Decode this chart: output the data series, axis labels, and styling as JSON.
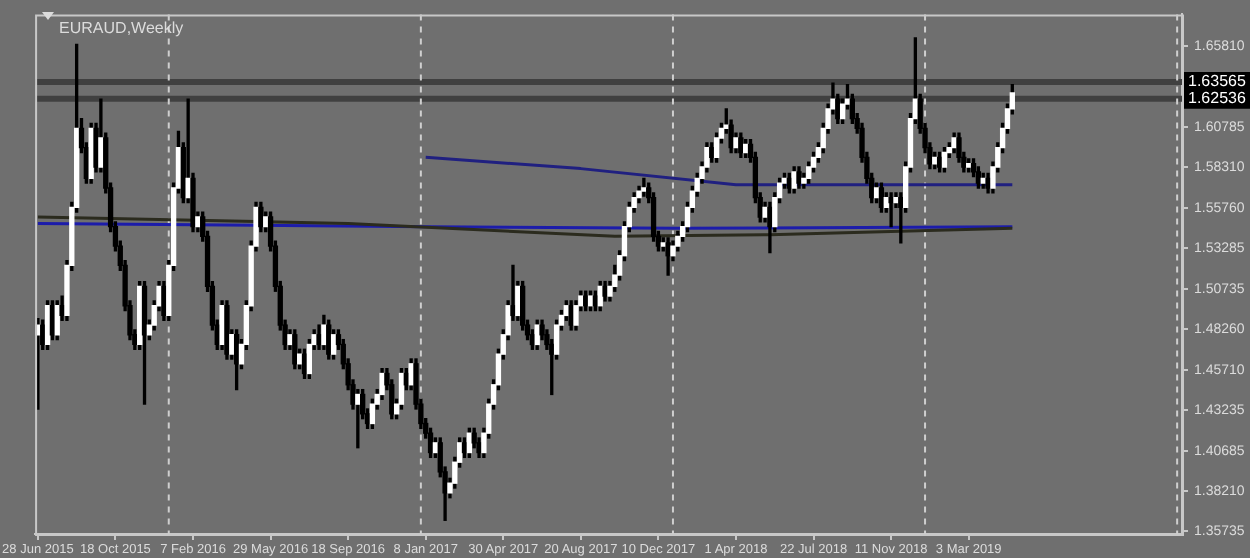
{
  "chart_data": {
    "type": "candlestick",
    "title": "EURAUD,Weekly",
    "x": [
      "2015-06-28",
      "2015-07-05",
      "2015-07-12",
      "2015-07-19",
      "2015-07-26",
      "2015-08-02",
      "2015-08-09",
      "2015-08-16",
      "2015-08-23",
      "2015-08-30",
      "2015-09-06",
      "2015-09-13",
      "2015-09-20",
      "2015-09-27",
      "2015-10-04",
      "2015-10-11",
      "2015-10-18",
      "2015-10-25",
      "2015-11-01",
      "2015-11-08",
      "2015-11-15",
      "2015-11-22",
      "2015-11-29",
      "2015-12-06",
      "2015-12-13",
      "2015-12-20",
      "2015-12-27",
      "2016-01-03",
      "2016-01-10",
      "2016-01-17",
      "2016-01-24",
      "2016-01-31",
      "2016-02-07",
      "2016-02-14",
      "2016-02-21",
      "2016-02-28",
      "2016-03-06",
      "2016-03-13",
      "2016-03-20",
      "2016-03-27",
      "2016-04-03",
      "2016-04-10",
      "2016-04-17",
      "2016-04-24",
      "2016-05-01",
      "2016-05-08",
      "2016-05-15",
      "2016-05-22",
      "2016-05-29",
      "2016-06-05",
      "2016-06-12",
      "2016-06-19",
      "2016-06-26",
      "2016-07-03",
      "2016-07-10",
      "2016-07-17",
      "2016-07-24",
      "2016-07-31",
      "2016-08-07",
      "2016-08-14",
      "2016-08-21",
      "2016-08-28",
      "2016-09-04",
      "2016-09-11",
      "2016-09-18",
      "2016-09-25",
      "2016-10-02",
      "2016-10-09",
      "2016-10-16",
      "2016-10-23",
      "2016-10-30",
      "2016-11-06",
      "2016-11-13",
      "2016-11-20",
      "2016-11-27",
      "2016-12-04",
      "2016-12-11",
      "2016-12-18",
      "2016-12-25",
      "2017-01-01",
      "2017-01-08",
      "2017-01-15",
      "2017-01-22",
      "2017-01-29",
      "2017-02-05",
      "2017-02-12",
      "2017-02-19",
      "2017-02-26",
      "2017-03-05",
      "2017-03-12",
      "2017-03-19",
      "2017-03-26",
      "2017-04-02",
      "2017-04-09",
      "2017-04-16",
      "2017-04-23",
      "2017-04-30",
      "2017-05-07",
      "2017-05-14",
      "2017-05-21",
      "2017-05-28",
      "2017-06-04",
      "2017-06-11",
      "2017-06-18",
      "2017-06-25",
      "2017-07-02",
      "2017-07-09",
      "2017-07-16",
      "2017-07-23",
      "2017-07-30",
      "2017-08-06",
      "2017-08-13",
      "2017-08-20",
      "2017-08-27",
      "2017-09-03",
      "2017-09-10",
      "2017-09-17",
      "2017-09-24",
      "2017-10-01",
      "2017-10-08",
      "2017-10-15",
      "2017-10-22",
      "2017-10-29",
      "2017-11-05",
      "2017-11-12",
      "2017-11-19",
      "2017-11-26",
      "2017-12-03",
      "2017-12-10",
      "2017-12-17",
      "2017-12-24",
      "2017-12-31",
      "2018-01-07",
      "2018-01-14",
      "2018-01-21",
      "2018-01-28",
      "2018-02-04",
      "2018-02-11",
      "2018-02-18",
      "2018-02-25",
      "2018-03-04",
      "2018-03-11",
      "2018-03-18",
      "2018-03-25",
      "2018-04-01",
      "2018-04-08",
      "2018-04-15",
      "2018-04-22",
      "2018-04-29",
      "2018-05-06",
      "2018-05-13",
      "2018-05-20",
      "2018-05-27",
      "2018-06-03",
      "2018-06-10",
      "2018-06-17",
      "2018-06-24",
      "2018-07-01",
      "2018-07-08",
      "2018-07-15",
      "2018-07-22",
      "2018-07-29",
      "2018-08-05",
      "2018-08-12",
      "2018-08-19",
      "2018-08-26",
      "2018-09-02",
      "2018-09-09",
      "2018-09-16",
      "2018-09-23",
      "2018-09-30",
      "2018-10-07",
      "2018-10-14",
      "2018-10-21",
      "2018-10-28",
      "2018-11-04",
      "2018-11-11",
      "2018-11-18",
      "2018-11-25",
      "2018-12-02",
      "2018-12-09",
      "2018-12-16",
      "2018-12-23",
      "2018-12-30",
      "2019-01-06",
      "2019-01-13",
      "2019-01-20",
      "2019-01-27",
      "2019-02-03",
      "2019-02-10",
      "2019-02-17",
      "2019-02-24",
      "2019-03-03",
      "2019-03-10",
      "2019-03-17",
      "2019-03-24",
      "2019-03-31",
      "2019-04-07",
      "2019-04-14",
      "2019-04-21",
      "2019-04-28",
      "2019-05-05"
    ],
    "ohlc": [
      [
        1.479,
        1.489,
        1.433,
        1.485
      ],
      [
        1.485,
        1.488,
        1.47,
        1.473
      ],
      [
        1.473,
        1.5,
        1.47,
        1.497
      ],
      [
        1.497,
        1.5,
        1.476,
        1.479
      ],
      [
        1.479,
        1.5,
        1.476,
        1.497
      ],
      [
        1.497,
        1.503,
        1.488,
        1.491
      ],
      [
        1.491,
        1.525,
        1.488,
        1.522
      ],
      [
        1.522,
        1.561,
        1.519,
        1.558
      ],
      [
        1.558,
        1.659,
        1.555,
        1.607
      ],
      [
        1.607,
        1.613,
        1.592,
        1.595
      ],
      [
        1.595,
        1.598,
        1.573,
        1.576
      ],
      [
        1.576,
        1.61,
        1.573,
        1.607
      ],
      [
        1.607,
        1.61,
        1.58,
        1.583
      ],
      [
        1.583,
        1.625,
        1.58,
        1.601
      ],
      [
        1.601,
        1.604,
        1.567,
        1.57
      ],
      [
        1.57,
        1.573,
        1.543,
        1.546
      ],
      [
        1.546,
        1.549,
        1.531,
        1.534
      ],
      [
        1.534,
        1.537,
        1.519,
        1.522
      ],
      [
        1.522,
        1.525,
        1.494,
        1.497
      ],
      [
        1.497,
        1.5,
        1.476,
        1.479
      ],
      [
        1.479,
        1.482,
        1.47,
        1.473
      ],
      [
        1.473,
        1.512,
        1.47,
        1.509
      ],
      [
        1.509,
        1.512,
        1.436,
        1.479
      ],
      [
        1.479,
        1.488,
        1.476,
        1.485
      ],
      [
        1.485,
        1.5,
        1.482,
        1.497
      ],
      [
        1.497,
        1.512,
        1.494,
        1.509
      ],
      [
        1.509,
        1.512,
        1.488,
        1.491
      ],
      [
        1.491,
        1.525,
        1.488,
        1.522
      ],
      [
        1.522,
        1.573,
        1.519,
        1.57
      ],
      [
        1.57,
        1.605,
        1.567,
        1.595
      ],
      [
        1.595,
        1.598,
        1.561,
        1.564
      ],
      [
        1.564,
        1.625,
        1.561,
        1.576
      ],
      [
        1.576,
        1.579,
        1.543,
        1.546
      ],
      [
        1.546,
        1.555,
        1.543,
        1.552
      ],
      [
        1.552,
        1.555,
        1.537,
        1.54
      ],
      [
        1.54,
        1.543,
        1.506,
        1.509
      ],
      [
        1.509,
        1.512,
        1.482,
        1.485
      ],
      [
        1.485,
        1.488,
        1.47,
        1.473
      ],
      [
        1.473,
        1.5,
        1.47,
        1.497
      ],
      [
        1.497,
        1.5,
        1.464,
        1.467
      ],
      [
        1.467,
        1.482,
        1.464,
        1.479
      ],
      [
        1.479,
        1.482,
        1.445,
        1.461
      ],
      [
        1.461,
        1.476,
        1.458,
        1.473
      ],
      [
        1.473,
        1.5,
        1.47,
        1.497
      ],
      [
        1.497,
        1.537,
        1.494,
        1.534
      ],
      [
        1.534,
        1.561,
        1.531,
        1.558
      ],
      [
        1.558,
        1.561,
        1.543,
        1.546
      ],
      [
        1.546,
        1.555,
        1.543,
        1.552
      ],
      [
        1.552,
        1.555,
        1.531,
        1.534
      ],
      [
        1.534,
        1.537,
        1.506,
        1.509
      ],
      [
        1.509,
        1.512,
        1.482,
        1.485
      ],
      [
        1.485,
        1.488,
        1.47,
        1.473
      ],
      [
        1.473,
        1.482,
        1.47,
        1.479
      ],
      [
        1.479,
        1.482,
        1.458,
        1.461
      ],
      [
        1.461,
        1.47,
        1.458,
        1.467
      ],
      [
        1.467,
        1.47,
        1.452,
        1.455
      ],
      [
        1.455,
        1.476,
        1.452,
        1.473
      ],
      [
        1.473,
        1.482,
        1.47,
        1.479
      ],
      [
        1.479,
        1.485,
        1.47,
        1.473
      ],
      [
        1.473,
        1.491,
        1.47,
        1.485
      ],
      [
        1.485,
        1.488,
        1.464,
        1.467
      ],
      [
        1.467,
        1.482,
        1.464,
        1.479
      ],
      [
        1.479,
        1.482,
        1.47,
        1.473
      ],
      [
        1.473,
        1.476,
        1.458,
        1.461
      ],
      [
        1.461,
        1.464,
        1.445,
        1.448
      ],
      [
        1.448,
        1.451,
        1.433,
        1.436
      ],
      [
        1.436,
        1.445,
        1.409,
        1.442
      ],
      [
        1.442,
        1.445,
        1.427,
        1.43
      ],
      [
        1.43,
        1.433,
        1.421,
        1.424
      ],
      [
        1.424,
        1.439,
        1.421,
        1.436
      ],
      [
        1.436,
        1.445,
        1.433,
        1.442
      ],
      [
        1.442,
        1.458,
        1.439,
        1.455
      ],
      [
        1.455,
        1.458,
        1.445,
        1.448
      ],
      [
        1.448,
        1.451,
        1.427,
        1.43
      ],
      [
        1.43,
        1.439,
        1.427,
        1.436
      ],
      [
        1.436,
        1.458,
        1.433,
        1.455
      ],
      [
        1.455,
        1.458,
        1.445,
        1.448
      ],
      [
        1.448,
        1.464,
        1.445,
        1.461
      ],
      [
        1.461,
        1.464,
        1.433,
        1.436
      ],
      [
        1.436,
        1.439,
        1.421,
        1.424
      ],
      [
        1.424,
        1.427,
        1.415,
        1.418
      ],
      [
        1.418,
        1.421,
        1.403,
        1.406
      ],
      [
        1.406,
        1.415,
        1.403,
        1.412
      ],
      [
        1.412,
        1.415,
        1.391,
        1.394
      ],
      [
        1.394,
        1.397,
        1.364,
        1.381
      ],
      [
        1.381,
        1.39,
        1.378,
        1.387
      ],
      [
        1.387,
        1.403,
        1.384,
        1.4
      ],
      [
        1.4,
        1.415,
        1.397,
        1.412
      ],
      [
        1.412,
        1.415,
        1.403,
        1.406
      ],
      [
        1.406,
        1.421,
        1.403,
        1.418
      ],
      [
        1.418,
        1.421,
        1.409,
        1.412
      ],
      [
        1.412,
        1.415,
        1.403,
        1.406
      ],
      [
        1.406,
        1.421,
        1.403,
        1.418
      ],
      [
        1.418,
        1.439,
        1.415,
        1.436
      ],
      [
        1.436,
        1.451,
        1.433,
        1.448
      ],
      [
        1.448,
        1.47,
        1.445,
        1.467
      ],
      [
        1.467,
        1.482,
        1.464,
        1.479
      ],
      [
        1.479,
        1.5,
        1.476,
        1.497
      ],
      [
        1.497,
        1.522,
        1.488,
        1.491
      ],
      [
        1.491,
        1.512,
        1.488,
        1.509
      ],
      [
        1.509,
        1.512,
        1.482,
        1.485
      ],
      [
        1.485,
        1.488,
        1.476,
        1.479
      ],
      [
        1.479,
        1.482,
        1.47,
        1.473
      ],
      [
        1.473,
        1.488,
        1.47,
        1.485
      ],
      [
        1.485,
        1.488,
        1.476,
        1.479
      ],
      [
        1.479,
        1.482,
        1.47,
        1.473
      ],
      [
        1.473,
        1.476,
        1.442,
        1.467
      ],
      [
        1.467,
        1.488,
        1.464,
        1.485
      ],
      [
        1.485,
        1.494,
        1.482,
        1.491
      ],
      [
        1.491,
        1.5,
        1.488,
        1.497
      ],
      [
        1.497,
        1.5,
        1.482,
        1.485
      ],
      [
        1.485,
        1.5,
        1.482,
        1.497
      ],
      [
        1.497,
        1.506,
        1.494,
        1.503
      ],
      [
        1.503,
        1.506,
        1.494,
        1.497
      ],
      [
        1.497,
        1.506,
        1.494,
        1.503
      ],
      [
        1.503,
        1.506,
        1.494,
        1.497
      ],
      [
        1.497,
        1.512,
        1.494,
        1.509
      ],
      [
        1.509,
        1.512,
        1.5,
        1.503
      ],
      [
        1.503,
        1.512,
        1.5,
        1.509
      ],
      [
        1.509,
        1.522,
        1.506,
        1.516
      ],
      [
        1.516,
        1.531,
        1.513,
        1.528
      ],
      [
        1.528,
        1.549,
        1.525,
        1.546
      ],
      [
        1.546,
        1.561,
        1.543,
        1.558
      ],
      [
        1.558,
        1.567,
        1.555,
        1.564
      ],
      [
        1.564,
        1.571,
        1.561,
        1.568
      ],
      [
        1.568,
        1.576,
        1.565,
        1.57
      ],
      [
        1.57,
        1.573,
        1.561,
        1.564
      ],
      [
        1.564,
        1.567,
        1.537,
        1.54
      ],
      [
        1.54,
        1.543,
        1.531,
        1.534
      ],
      [
        1.534,
        1.539,
        1.531,
        1.536
      ],
      [
        1.536,
        1.539,
        1.516,
        1.528
      ],
      [
        1.528,
        1.537,
        1.525,
        1.534
      ],
      [
        1.534,
        1.543,
        1.531,
        1.54
      ],
      [
        1.54,
        1.549,
        1.537,
        1.546
      ],
      [
        1.546,
        1.561,
        1.543,
        1.558
      ],
      [
        1.558,
        1.571,
        1.555,
        1.568
      ],
      [
        1.568,
        1.579,
        1.565,
        1.576
      ],
      [
        1.576,
        1.586,
        1.573,
        1.583
      ],
      [
        1.583,
        1.598,
        1.58,
        1.595
      ],
      [
        1.595,
        1.598,
        1.586,
        1.589
      ],
      [
        1.589,
        1.604,
        1.586,
        1.601
      ],
      [
        1.601,
        1.61,
        1.598,
        1.607
      ],
      [
        1.607,
        1.619,
        1.604,
        1.609
      ],
      [
        1.609,
        1.612,
        1.592,
        1.595
      ],
      [
        1.595,
        1.604,
        1.592,
        1.601
      ],
      [
        1.601,
        1.604,
        1.589,
        1.592
      ],
      [
        1.592,
        1.6,
        1.589,
        1.597
      ],
      [
        1.597,
        1.6,
        1.586,
        1.589
      ],
      [
        1.589,
        1.592,
        1.561,
        1.564
      ],
      [
        1.564,
        1.567,
        1.549,
        1.552
      ],
      [
        1.552,
        1.561,
        1.549,
        1.558
      ],
      [
        1.558,
        1.561,
        1.53,
        1.546
      ],
      [
        1.546,
        1.567,
        1.543,
        1.564
      ],
      [
        1.564,
        1.576,
        1.561,
        1.573
      ],
      [
        1.573,
        1.579,
        1.57,
        1.576
      ],
      [
        1.576,
        1.579,
        1.567,
        1.57
      ],
      [
        1.57,
        1.583,
        1.567,
        1.58
      ],
      [
        1.58,
        1.583,
        1.57,
        1.573
      ],
      [
        1.573,
        1.579,
        1.57,
        1.576
      ],
      [
        1.576,
        1.586,
        1.573,
        1.583
      ],
      [
        1.583,
        1.592,
        1.58,
        1.589
      ],
      [
        1.589,
        1.598,
        1.586,
        1.595
      ],
      [
        1.595,
        1.61,
        1.592,
        1.607
      ],
      [
        1.607,
        1.622,
        1.604,
        1.619
      ],
      [
        1.619,
        1.635,
        1.616,
        1.625
      ],
      [
        1.625,
        1.628,
        1.61,
        1.613
      ],
      [
        1.613,
        1.625,
        1.61,
        1.622
      ],
      [
        1.622,
        1.634,
        1.619,
        1.625
      ],
      [
        1.625,
        1.628,
        1.61,
        1.613
      ],
      [
        1.613,
        1.616,
        1.604,
        1.607
      ],
      [
        1.607,
        1.61,
        1.586,
        1.589
      ],
      [
        1.589,
        1.592,
        1.573,
        1.576
      ],
      [
        1.576,
        1.579,
        1.561,
        1.564
      ],
      [
        1.564,
        1.573,
        1.561,
        1.57
      ],
      [
        1.57,
        1.573,
        1.555,
        1.558
      ],
      [
        1.558,
        1.567,
        1.555,
        1.564
      ],
      [
        1.564,
        1.567,
        1.546,
        1.561
      ],
      [
        1.561,
        1.567,
        1.558,
        1.564
      ],
      [
        1.564,
        1.567,
        1.536,
        1.558
      ],
      [
        1.558,
        1.586,
        1.555,
        1.583
      ],
      [
        1.583,
        1.616,
        1.58,
        1.613
      ],
      [
        1.613,
        1.663,
        1.61,
        1.625
      ],
      [
        1.625,
        1.628,
        1.604,
        1.607
      ],
      [
        1.607,
        1.61,
        1.592,
        1.595
      ],
      [
        1.595,
        1.598,
        1.582,
        1.585
      ],
      [
        1.585,
        1.592,
        1.582,
        1.589
      ],
      [
        1.589,
        1.592,
        1.58,
        1.583
      ],
      [
        1.583,
        1.595,
        1.58,
        1.592
      ],
      [
        1.592,
        1.598,
        1.589,
        1.595
      ],
      [
        1.595,
        1.604,
        1.592,
        1.601
      ],
      [
        1.601,
        1.604,
        1.586,
        1.589
      ],
      [
        1.589,
        1.592,
        1.58,
        1.583
      ],
      [
        1.583,
        1.588,
        1.58,
        1.585
      ],
      [
        1.585,
        1.588,
        1.577,
        1.58
      ],
      [
        1.58,
        1.583,
        1.57,
        1.573
      ],
      [
        1.573,
        1.579,
        1.57,
        1.576
      ],
      [
        1.576,
        1.579,
        1.567,
        1.57
      ],
      [
        1.57,
        1.586,
        1.567,
        1.583
      ],
      [
        1.583,
        1.598,
        1.58,
        1.595
      ],
      [
        1.595,
        1.61,
        1.592,
        1.607
      ],
      [
        1.607,
        1.622,
        1.604,
        1.619
      ],
      [
        1.619,
        1.634,
        1.616,
        1.629
      ]
    ],
    "series": [
      {
        "type": "line",
        "color": "#2b2b1e",
        "x": [
          "2015-06-28",
          "2016-09-18",
          "2017-10-08",
          "2018-05-20",
          "2019-05-05"
        ],
        "values": [
          1.552,
          1.548,
          1.54,
          1.541,
          1.545
        ]
      },
      {
        "type": "line",
        "color": "#1c1caa",
        "x": [
          "2015-06-28",
          "2017-01-08",
          "2018-01-07",
          "2019-05-05"
        ],
        "values": [
          1.548,
          1.546,
          1.545,
          1.546
        ]
      },
      {
        "type": "line",
        "color": "#202080",
        "x": [
          "2017-01-08",
          "2017-08-20",
          "2018-04-01",
          "2018-04-29",
          "2019-05-05"
        ],
        "values": [
          1.589,
          1.582,
          1.572,
          1.572,
          1.572
        ]
      }
    ],
    "xlim": [
      "2015-06-24",
      "2020-01-05"
    ],
    "ylim": [
      1.3555,
      1.6776
    ],
    "xticks": [
      {
        "value": "2015-06-28",
        "label": "28 Jun 2015"
      },
      {
        "value": "2015-10-18",
        "label": "18 Oct 2015"
      },
      {
        "value": "2016-02-07",
        "label": "7 Feb 2016"
      },
      {
        "value": "2016-05-29",
        "label": "29 May 2016"
      },
      {
        "value": "2016-09-18",
        "label": "18 Sep 2016"
      },
      {
        "value": "2017-01-08",
        "label": "8 Jan 2017"
      },
      {
        "value": "2017-04-30",
        "label": "30 Apr 2017"
      },
      {
        "value": "2017-08-20",
        "label": "20 Aug 2017"
      },
      {
        "value": "2017-12-10",
        "label": "10 Dec 2017"
      },
      {
        "value": "2018-04-01",
        "label": "1 Apr 2018"
      },
      {
        "value": "2018-07-22",
        "label": "22 Jul 2018"
      },
      {
        "value": "2018-11-11",
        "label": "11 Nov 2018"
      },
      {
        "value": "2019-03-03",
        "label": "3 Mar 2019"
      }
    ],
    "yticks": [
      {
        "value": 1.6581,
        "label": "1.65810"
      },
      1.60785,
      {
        "value": 1.5831,
        "label": "1.58310"
      },
      {
        "value": 1.5576,
        "label": "1.55760"
      },
      1.53285,
      1.50735,
      {
        "value": 1.4826,
        "label": "1.48260"
      },
      {
        "value": 1.4571,
        "label": "1.45710"
      },
      1.43235,
      1.40685,
      {
        "value": 1.3821,
        "label": "1.38210"
      },
      1.35735
    ],
    "ref_lines": [
      {
        "axis": "y",
        "value": 1.63565,
        "label": "1.63565",
        "color": "#404040",
        "line_style": "solid"
      },
      {
        "axis": "y",
        "value": 1.62536,
        "label": "1.62536",
        "color": "#404040",
        "line_style": "solid"
      },
      {
        "axis": "x",
        "value": "2016-01-03",
        "color": "#cfcfcf",
        "line_style": "dashed"
      },
      {
        "axis": "x",
        "value": "2017-01-01",
        "color": "#cfcfcf",
        "line_style": "dashed"
      },
      {
        "axis": "x",
        "value": "2017-12-31",
        "color": "#cfcfcf",
        "line_style": "dashed"
      },
      {
        "axis": "x",
        "value": "2018-12-30",
        "color": "#cfcfcf",
        "line_style": "dashed"
      },
      {
        "axis": "x",
        "value": "2019-12-29",
        "color": "#cfcfcf",
        "line_style": "dashed"
      }
    ]
  }
}
